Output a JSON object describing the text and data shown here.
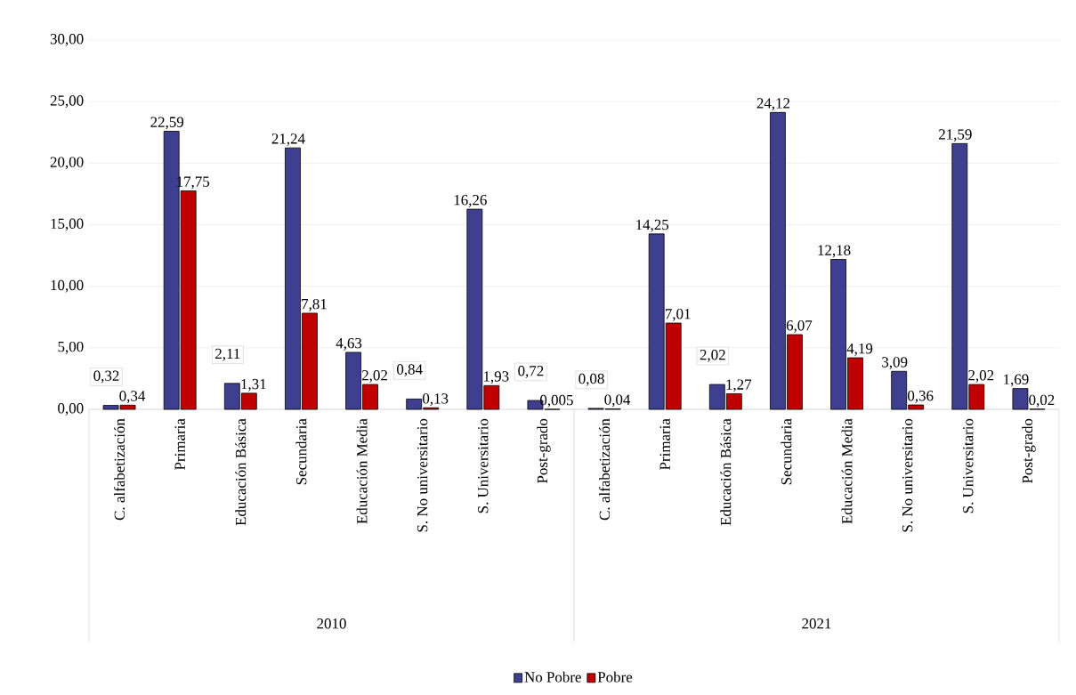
{
  "chart_data": {
    "type": "bar",
    "categories": [
      "C. alfabetización",
      "Primaria",
      "Educación Básica",
      "Secundaria",
      "Educación  Media",
      "S. No universitario",
      "S. Universitario",
      "Post-grado",
      "C. alfabetización",
      "Primaria",
      "Educación Básica",
      "Secundaria",
      "Educación  Media",
      "S. No universitario",
      "S. Universitario",
      "Post-grado"
    ],
    "annotations": [
      "2010",
      "2021"
    ],
    "series": [
      {
        "name": "No Pobre",
        "color": "#3f3f8f",
        "values": [
          0.32,
          22.59,
          2.11,
          21.24,
          4.63,
          0.84,
          16.26,
          0.72,
          0.08,
          14.25,
          2.02,
          24.12,
          12.18,
          3.09,
          21.59,
          1.69
        ],
        "value_labels": [
          "0,32",
          "22,59",
          "2,11",
          "21,24",
          "4,63",
          "0,84",
          "16,26",
          "0,72",
          "0,08",
          "14,25",
          "2,02",
          "24,12",
          "12,18",
          "3,09",
          "21,59",
          "1,69"
        ]
      },
      {
        "name": "Pobre",
        "color": "#c00000",
        "values": [
          0.34,
          17.75,
          1.31,
          7.81,
          2.02,
          0.13,
          1.93,
          0.005,
          0.04,
          7.01,
          1.27,
          6.07,
          4.19,
          0.36,
          2.02,
          0.02
        ],
        "value_labels": [
          "0,34",
          "17,75",
          "1,31",
          "7,81",
          "2,02",
          "0,13",
          "1,93",
          "0,005",
          "0,04",
          "7,01",
          "1,27",
          "6,07",
          "4,19",
          "0,36",
          "2,02",
          "0,02"
        ]
      }
    ],
    "ylim": [
      0,
      30
    ],
    "yticks": [
      {
        "value": 0,
        "label": "0,00"
      },
      {
        "value": 5,
        "label": "5,00"
      },
      {
        "value": 10,
        "label": "10,00"
      },
      {
        "value": 15,
        "label": "15,00"
      },
      {
        "value": 20,
        "label": "20,00"
      },
      {
        "value": 25,
        "label": "25,00"
      },
      {
        "value": 30,
        "label": "30,00"
      }
    ],
    "grid": "y",
    "legend": "bottom"
  }
}
